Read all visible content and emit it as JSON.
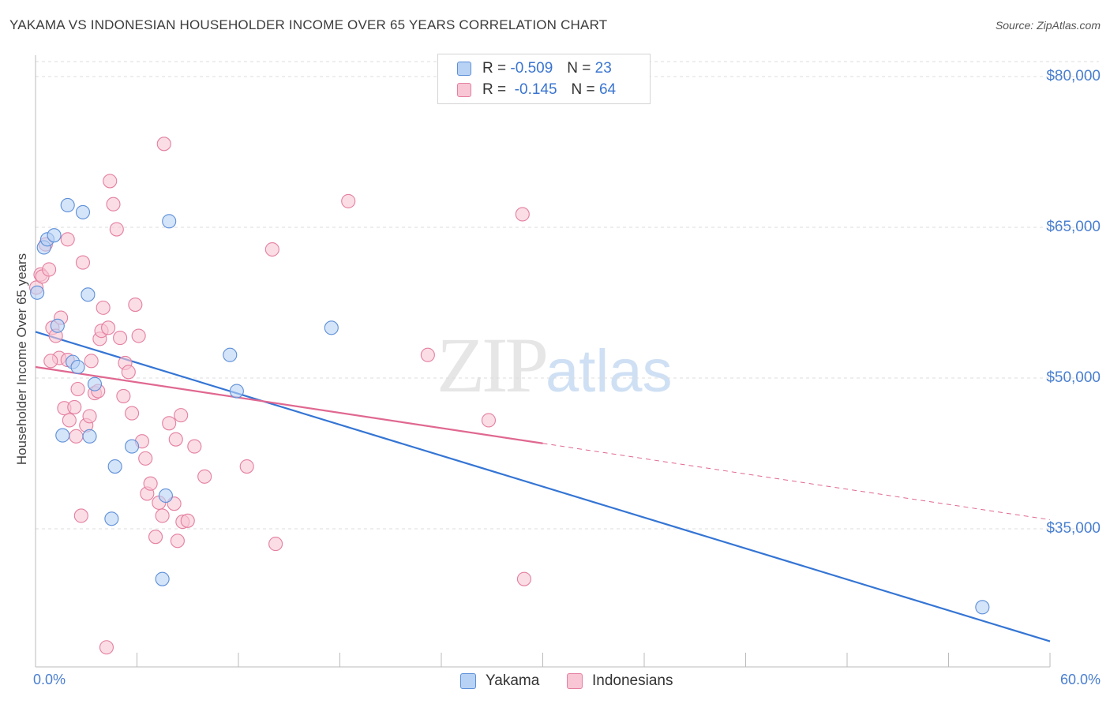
{
  "title": "YAKAMA VS INDONESIAN HOUSEHOLDER INCOME OVER 65 YEARS CORRELATION CHART",
  "source": "Source: ZipAtlas.com",
  "watermark": {
    "zip": "ZIP",
    "atlas": "atlas"
  },
  "legend": {
    "rows": [
      {
        "r_label": "R = ",
        "r_value": "-0.509",
        "n_label": "N = ",
        "n_value": "23"
      },
      {
        "r_label": "R = ",
        "r_value": "-0.145",
        "n_label": "N = ",
        "n_value": "64"
      }
    ]
  },
  "bottom_legend": [
    "Yakama",
    "Indonesians"
  ],
  "colors": {
    "yakama_fill": "#b8d2f5",
    "yakama_stroke": "#5d8fd8",
    "yakama_line": "#3575d4",
    "indo_fill": "#f8c6d4",
    "indo_stroke": "#e47fa0",
    "indo_line": "#e06890",
    "grid": "#dcdcdc",
    "tick_label": "#4a7fd0"
  },
  "chart_data": {
    "type": "scatter",
    "title": "YAKAMA VS INDONESIAN HOUSEHOLDER INCOME OVER 65 YEARS CORRELATION CHART",
    "xlabel": "",
    "ylabel": "Householder Income Over 65 years",
    "xlim": [
      0,
      60
    ],
    "ylim": [
      20000,
      83000
    ],
    "x_tick_labels": [
      "0.0%",
      "60.0%"
    ],
    "y_ticks": [
      35000,
      50000,
      65000,
      80000
    ],
    "y_tick_labels": [
      "$35,000",
      "$50,000",
      "$65,000",
      "$80,000"
    ],
    "grid": true,
    "series": [
      {
        "name": "Yakama",
        "R": -0.509,
        "N": 23,
        "points": [
          [
            0.1,
            58500
          ],
          [
            0.5,
            63000
          ],
          [
            0.7,
            63800
          ],
          [
            1.1,
            64200
          ],
          [
            1.9,
            67200
          ],
          [
            2.8,
            66500
          ],
          [
            1.3,
            55200
          ],
          [
            3.1,
            58300
          ],
          [
            2.2,
            51600
          ],
          [
            2.5,
            51100
          ],
          [
            3.5,
            49400
          ],
          [
            1.6,
            44300
          ],
          [
            3.2,
            44200
          ],
          [
            4.7,
            41200
          ],
          [
            5.7,
            43200
          ],
          [
            4.5,
            36000
          ],
          [
            7.7,
            38300
          ],
          [
            7.5,
            30000
          ],
          [
            7.9,
            65600
          ],
          [
            11.5,
            52300
          ],
          [
            11.9,
            48700
          ],
          [
            17.5,
            55000
          ],
          [
            56.0,
            27200
          ]
        ],
        "trend": {
          "x0": 0,
          "y0": 54600,
          "x1": 60,
          "y1": 23800
        }
      },
      {
        "name": "Indonesians",
        "R": -0.145,
        "N": 64,
        "points": [
          [
            0.05,
            59000
          ],
          [
            0.3,
            60300
          ],
          [
            0.4,
            60100
          ],
          [
            0.6,
            63300
          ],
          [
            0.8,
            60800
          ],
          [
            1.0,
            55000
          ],
          [
            1.2,
            54200
          ],
          [
            1.4,
            52000
          ],
          [
            1.5,
            56000
          ],
          [
            1.9,
            51800
          ],
          [
            0.9,
            51700
          ],
          [
            1.7,
            47000
          ],
          [
            2.3,
            47100
          ],
          [
            2.5,
            48900
          ],
          [
            2.0,
            45800
          ],
          [
            2.4,
            44200
          ],
          [
            1.9,
            63800
          ],
          [
            2.8,
            61500
          ],
          [
            3.0,
            45300
          ],
          [
            3.2,
            46200
          ],
          [
            3.3,
            51700
          ],
          [
            3.5,
            48500
          ],
          [
            3.7,
            48700
          ],
          [
            3.8,
            53900
          ],
          [
            3.9,
            54700
          ],
          [
            4.3,
            55000
          ],
          [
            4.0,
            57000
          ],
          [
            4.4,
            69600
          ],
          [
            4.6,
            67300
          ],
          [
            4.8,
            64800
          ],
          [
            5.0,
            54000
          ],
          [
            5.2,
            48200
          ],
          [
            5.3,
            51500
          ],
          [
            5.5,
            50600
          ],
          [
            5.7,
            46500
          ],
          [
            5.9,
            57300
          ],
          [
            6.1,
            54200
          ],
          [
            6.3,
            43700
          ],
          [
            6.5,
            42000
          ],
          [
            6.6,
            38500
          ],
          [
            6.8,
            39500
          ],
          [
            7.1,
            34200
          ],
          [
            7.3,
            37600
          ],
          [
            7.5,
            36300
          ],
          [
            7.9,
            45500
          ],
          [
            8.3,
            43900
          ],
          [
            8.6,
            46300
          ],
          [
            8.2,
            37500
          ],
          [
            8.4,
            33800
          ],
          [
            8.7,
            35700
          ],
          [
            9.0,
            35800
          ],
          [
            9.4,
            43200
          ],
          [
            10.0,
            40200
          ],
          [
            7.6,
            73300
          ],
          [
            12.5,
            41200
          ],
          [
            14.0,
            62800
          ],
          [
            14.2,
            33500
          ],
          [
            18.5,
            67600
          ],
          [
            23.2,
            52300
          ],
          [
            26.8,
            45800
          ],
          [
            28.8,
            66300
          ],
          [
            28.9,
            30000
          ],
          [
            2.7,
            36300
          ],
          [
            4.2,
            23200
          ]
        ],
        "trend": {
          "x0": 0,
          "y0": 51100,
          "x1": 30,
          "y1": 43500,
          "x_dash_end": 60,
          "y_dash_end": 35900
        }
      }
    ]
  }
}
